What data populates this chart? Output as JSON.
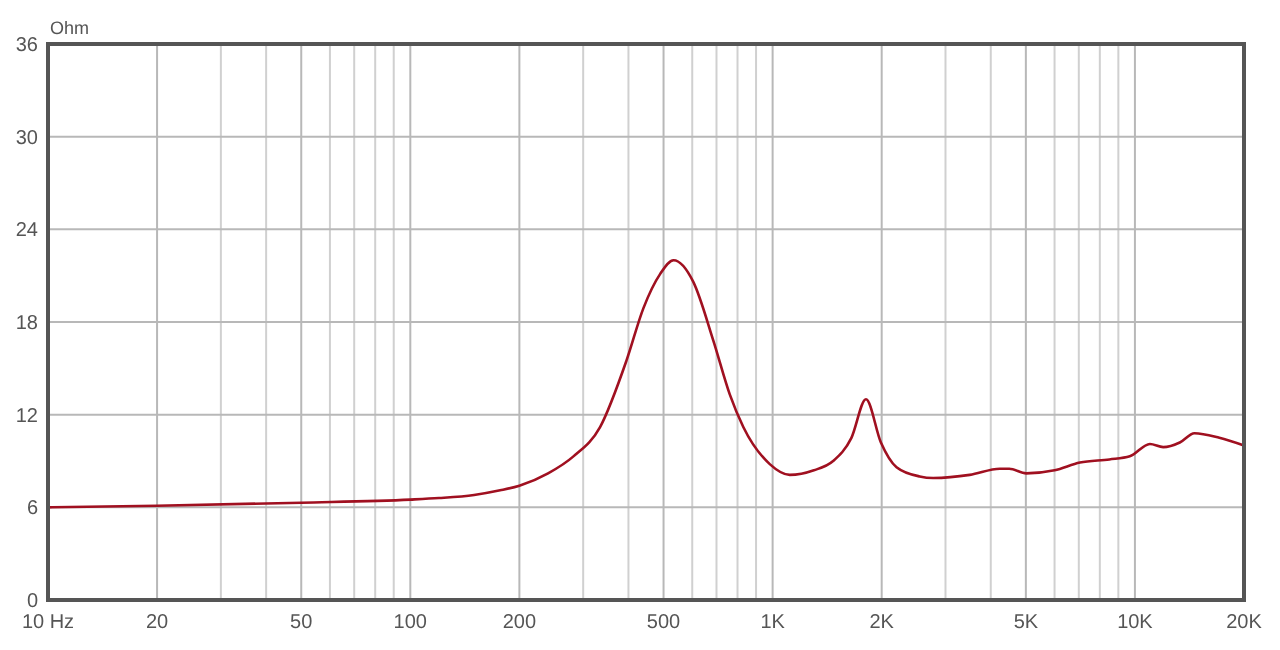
{
  "chart_data": {
    "type": "line",
    "ylabel": "Ohm",
    "log": "x",
    "grid": true,
    "marker": "none",
    "line_style": "solid",
    "xlim": [
      10,
      20000
    ],
    "ylim": [
      0,
      36
    ],
    "yticks": [
      0,
      6,
      12,
      18,
      24,
      30,
      36
    ],
    "xticks": [
      {
        "value": 10,
        "label": "10 Hz"
      },
      20,
      {
        "value": 30,
        "label": null
      },
      {
        "value": 40,
        "label": null
      },
      50,
      {
        "value": 60,
        "label": null
      },
      {
        "value": 70,
        "label": null
      },
      {
        "value": 80,
        "label": null
      },
      {
        "value": 90,
        "label": null
      },
      100,
      200,
      {
        "value": 300,
        "label": null
      },
      {
        "value": 400,
        "label": null
      },
      500,
      {
        "value": 600,
        "label": null
      },
      {
        "value": 700,
        "label": null
      },
      {
        "value": 800,
        "label": null
      },
      {
        "value": 900,
        "label": null
      },
      {
        "value": 1000,
        "label": "1K"
      },
      {
        "value": 2000,
        "label": "2K"
      },
      {
        "value": 3000,
        "label": null
      },
      {
        "value": 4000,
        "label": null
      },
      {
        "value": 5000,
        "label": "5K"
      },
      {
        "value": 6000,
        "label": null
      },
      {
        "value": 7000,
        "label": null
      },
      {
        "value": 8000,
        "label": null
      },
      {
        "value": 9000,
        "label": null
      },
      {
        "value": 10000,
        "label": "10K"
      },
      {
        "value": 20000,
        "label": "20K"
      }
    ],
    "series": [
      {
        "color": "#a01020",
        "x": [
          10,
          20,
          50,
          100,
          120,
          150,
          177,
          200,
          240,
          282,
          334,
          395,
          440,
          489,
          533,
          604,
          686,
          762,
          830,
          982,
          1115,
          1300,
          1469,
          1650,
          1810,
          1990,
          2198,
          2546,
          2773,
          3500,
          4238,
          4500,
          5012,
          6000,
          7050,
          8500,
          9680,
          11000,
          11970,
          13300,
          14600,
          17100,
          20000
        ],
        "values": [
          6.0,
          6.1,
          6.3,
          6.5,
          6.6,
          6.8,
          7.1,
          7.4,
          8.2,
          9.3,
          11.2,
          15.5,
          18.9,
          21.1,
          22.0,
          20.6,
          16.8,
          13.3,
          11.2,
          8.8,
          8.1,
          8.4,
          9.0,
          10.5,
          13.0,
          10.2,
          8.6,
          8.0,
          7.9,
          8.1,
          8.5,
          8.5,
          8.2,
          8.4,
          8.9,
          9.1,
          9.3,
          10.1,
          9.9,
          10.2,
          10.8,
          10.5,
          10.0
        ]
      }
    ]
  }
}
